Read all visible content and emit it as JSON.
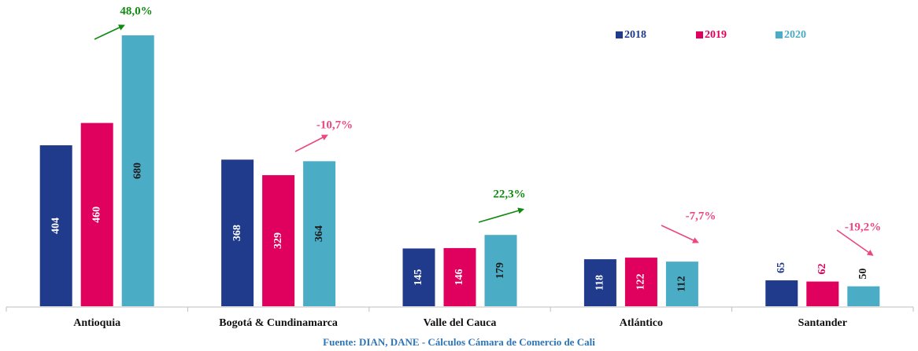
{
  "chart_data": {
    "type": "bar",
    "categories": [
      "Antioquia",
      "Bogotá & Cundinamarca",
      "Valle del Cauca",
      "Atlántico",
      "Santander"
    ],
    "series": [
      {
        "name": "2018",
        "color": "#203a8c",
        "values": [
          404,
          368,
          145,
          118,
          65
        ]
      },
      {
        "name": "2019",
        "color": "#e0005e",
        "values": [
          460,
          329,
          146,
          122,
          62
        ]
      },
      {
        "name": "2020",
        "color": "#4bacc6",
        "values": [
          680,
          364,
          179,
          112,
          50
        ]
      }
    ],
    "annotations": [
      {
        "text": "48,0%",
        "color": "#108a10"
      },
      {
        "text": "-10,7%",
        "color": "#ec4683"
      },
      {
        "text": "22,3%",
        "color": "#108a10"
      },
      {
        "text": "-7,7%",
        "color": "#ec4683"
      },
      {
        "text": "-19,2%",
        "color": "#ec4683"
      }
    ],
    "source": "Fuente: DIAN, DANE - Cálculos Cámara de Comercio de Cali",
    "legend": "top-right"
  }
}
